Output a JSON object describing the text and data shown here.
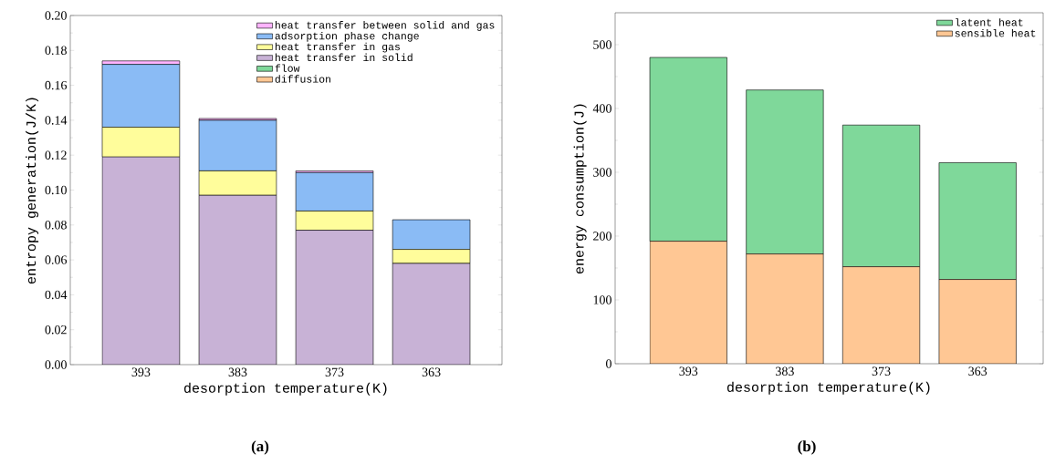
{
  "chart_data": [
    {
      "type": "bar",
      "stacked": true,
      "categories": [
        "393",
        "383",
        "373",
        "363"
      ],
      "xlabel": "desorption temperature(K)",
      "ylabel": "entropy generation(J/K)",
      "ylim": [
        0,
        0.2
      ],
      "yticks": [
        {
          "value": 0,
          "label": "0.00"
        },
        {
          "value": 0.02,
          "label": "0.02"
        },
        {
          "value": 0.04,
          "label": "0.04"
        },
        {
          "value": 0.06,
          "label": "0.06"
        },
        {
          "value": 0.08,
          "label": "0.08"
        },
        {
          "value": 0.1,
          "label": "0.10"
        },
        {
          "value": 0.12,
          "label": "0.12"
        },
        {
          "value": 0.14,
          "label": "0.14"
        },
        {
          "value": 0.16,
          "label": "0.16"
        },
        {
          "value": 0.18,
          "label": "0.18"
        },
        {
          "value": 0.2,
          "label": "0.20"
        }
      ],
      "legend": "top right",
      "annotations": [
        "(a)"
      ],
      "series": [
        {
          "name": "diffusion",
          "color": "#ffc794",
          "values": [
            0,
            0,
            0,
            0
          ]
        },
        {
          "name": "flow",
          "color": "#7fd89a",
          "values": [
            0,
            0,
            0,
            0
          ]
        },
        {
          "name": "heat transfer in solid",
          "color": "#c8b2d6",
          "values": [
            0.119,
            0.097,
            0.077,
            0.058
          ]
        },
        {
          "name": "heat transfer in gas",
          "color": "#fffd9b",
          "values": [
            0.017,
            0.014,
            0.011,
            0.008
          ]
        },
        {
          "name": "adsorption phase change",
          "color": "#8abbf5",
          "values": [
            0.036,
            0.029,
            0.022,
            0.017
          ]
        },
        {
          "name": "heat transfer between solid and gas",
          "color": "#ffb3ff",
          "values": [
            0.002,
            0.001,
            0.001,
            null
          ]
        }
      ]
    },
    {
      "type": "bar",
      "stacked": true,
      "categories": [
        "393",
        "383",
        "373",
        "363"
      ],
      "xlabel": "desorption temperature(K)",
      "ylabel": "energy consumption(J)",
      "ylim": [
        0,
        550
      ],
      "yticks": [
        0,
        100,
        200,
        300,
        400,
        500
      ],
      "legend": "top right",
      "annotations": [
        "(b)"
      ],
      "series": [
        {
          "name": "sensible heat",
          "color": "#ffc794",
          "values": [
            192,
            172,
            152,
            132
          ]
        },
        {
          "name": "latent heat",
          "color": "#7fd89a",
          "values": [
            288,
            257,
            222,
            183
          ]
        }
      ]
    }
  ]
}
